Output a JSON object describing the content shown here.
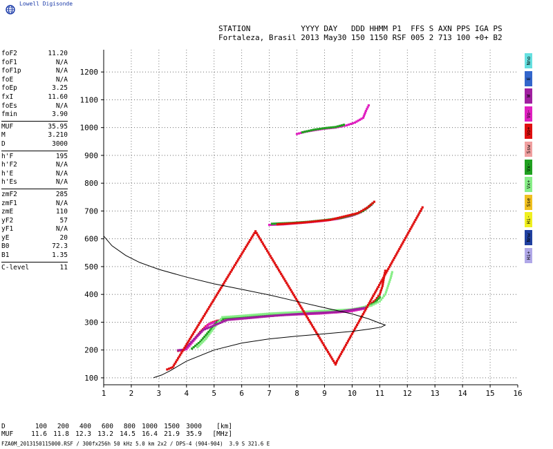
{
  "brand": {
    "name": "Lowell Digisonde"
  },
  "header": {
    "line1": "STATION           YYYY DAY   DDD HHMM P1  FFS S AXN PPS IGA PS",
    "line2": "Fortaleza, Brasil 2013 May30 150 1150 RSF 005 2 713 100 +0+ B2"
  },
  "parameters": [
    [
      {
        "k": "foF2",
        "v": "11.20"
      },
      {
        "k": "foF1",
        "v": "N/A"
      },
      {
        "k": "foF1p",
        "v": "N/A"
      },
      {
        "k": "foE",
        "v": "N/A"
      },
      {
        "k": "foEp",
        "v": "3.25"
      },
      {
        "k": "fxI",
        "v": "11.60"
      },
      {
        "k": "foEs",
        "v": "N/A"
      },
      {
        "k": "fmin",
        "v": "3.90"
      }
    ],
    [
      {
        "k": "MUF",
        "v": "35.95"
      },
      {
        "k": "M",
        "v": "3.210"
      },
      {
        "k": "D",
        "v": "3000"
      }
    ],
    [
      {
        "k": "h'F",
        "v": "195"
      },
      {
        "k": "h'F2",
        "v": "N/A"
      },
      {
        "k": "h'E",
        "v": "N/A"
      },
      {
        "k": "h'Es",
        "v": "N/A"
      }
    ],
    [
      {
        "k": "zmF2",
        "v": "285"
      },
      {
        "k": "zmF1",
        "v": "N/A"
      },
      {
        "k": "zmE",
        "v": "110"
      },
      {
        "k": "yF2",
        "v": "57"
      },
      {
        "k": "yF1",
        "v": "N/A"
      },
      {
        "k": "yE",
        "v": "20"
      },
      {
        "k": "B0",
        "v": "72.3"
      },
      {
        "k": "B1",
        "v": "1.35"
      }
    ],
    [
      {
        "k": "C-level",
        "v": "11"
      }
    ]
  ],
  "legend": [
    {
      "label": "Nno",
      "color": "#66e0e0"
    },
    {
      "label": "E",
      "color": "#3366cc"
    },
    {
      "label": "W",
      "color": "#a020a0"
    },
    {
      "label": "Vo-",
      "color": "#e020c0"
    },
    {
      "label": "Vo+",
      "color": "#e01010"
    },
    {
      "label": "Ssw",
      "color": "#f0a0a0"
    },
    {
      "label": "Vx-",
      "color": "#20a020"
    },
    {
      "label": "Vx+",
      "color": "#88ee88"
    },
    {
      "label": "Sse",
      "color": "#f0c020"
    },
    {
      "label": "Hi-",
      "color": "#f0f020"
    },
    {
      "label": "Nnw",
      "color": "#2040a0"
    },
    {
      "label": "Hi+",
      "color": "#b0a8e8"
    }
  ],
  "distance_table": {
    "row1": [
      "D",
      "100",
      "200",
      "400",
      "600",
      "800",
      "1000",
      "1500",
      "3000",
      "[km]"
    ],
    "row2": [
      "MUF",
      "11.6",
      "11.8",
      "12.3",
      "13.2",
      "14.5",
      "16.4",
      "21.9",
      "35.9",
      "[MHz]"
    ]
  },
  "footer": {
    "text": "FZA0M_2013150115000.RSF / 300fx256h 50 kHz 5.0 km 2x2 / DPS-4 (904-904)  3.9 S 321.6 E"
  },
  "chart_data": {
    "type": "scatter",
    "xlim": [
      1,
      16
    ],
    "ylim": [
      75,
      1280
    ],
    "x_ticks": [
      1,
      2,
      3,
      4,
      5,
      6,
      7,
      8,
      9,
      10,
      11,
      12,
      13,
      14,
      15,
      16
    ],
    "y_ticks": [
      100,
      200,
      300,
      400,
      500,
      600,
      700,
      800,
      900,
      1000,
      1100,
      1200
    ],
    "grid": true,
    "profile_line": [
      [
        1.0,
        610
      ],
      [
        1.3,
        575
      ],
      [
        1.8,
        540
      ],
      [
        2.3,
        515
      ],
      [
        3.0,
        490
      ],
      [
        4.0,
        462
      ],
      [
        5.0,
        438
      ],
      [
        6.0,
        418
      ],
      [
        7.0,
        398
      ],
      [
        8.0,
        375
      ],
      [
        9.0,
        352
      ],
      [
        10.0,
        330
      ],
      [
        10.6,
        312
      ],
      [
        11.05,
        295
      ],
      [
        11.2,
        290
      ],
      [
        11.05,
        282
      ],
      [
        10.6,
        275
      ],
      [
        10.0,
        267
      ],
      [
        9.0,
        258
      ],
      [
        8.0,
        250
      ],
      [
        7.0,
        240
      ],
      [
        6.0,
        225
      ],
      [
        5.0,
        200
      ],
      [
        4.0,
        160
      ],
      [
        3.4,
        125
      ],
      [
        3.1,
        110
      ],
      [
        2.8,
        100
      ]
    ],
    "traces": [
      {
        "name": "Vo+",
        "points": [
          [
            3.7,
            197
          ],
          [
            3.8,
            198
          ],
          [
            3.9,
            200
          ],
          [
            4.0,
            205
          ],
          [
            4.1,
            215
          ],
          [
            4.3,
            240
          ],
          [
            4.5,
            265
          ],
          [
            4.7,
            285
          ],
          [
            4.9,
            298
          ],
          [
            5.1,
            305
          ],
          [
            5.3,
            308
          ],
          [
            5.6,
            310
          ],
          [
            6.0,
            313
          ],
          [
            6.5,
            318
          ],
          [
            7.0,
            322
          ],
          [
            7.5,
            326
          ],
          [
            8.0,
            329
          ],
          [
            8.5,
            331
          ],
          [
            9.0,
            334
          ],
          [
            9.5,
            336
          ],
          [
            10.0,
            342
          ],
          [
            10.3,
            347
          ],
          [
            10.6,
            360
          ],
          [
            10.85,
            380
          ],
          [
            11.0,
            400
          ],
          [
            11.1,
            430
          ],
          [
            11.15,
            460
          ],
          [
            11.2,
            485
          ]
        ]
      },
      {
        "name": "Vo-",
        "points": [
          [
            3.8,
            199
          ],
          [
            4.0,
            203
          ],
          [
            4.4,
            250
          ],
          [
            4.8,
            292
          ],
          [
            5.2,
            306
          ],
          [
            5.8,
            311
          ],
          [
            6.5,
            317
          ],
          [
            7.2,
            324
          ],
          [
            8.0,
            328
          ],
          [
            8.8,
            331
          ],
          [
            9.5,
            336
          ],
          [
            10.0,
            340
          ],
          [
            10.4,
            348
          ],
          [
            10.7,
            362
          ]
        ]
      },
      {
        "name": "Vx-",
        "points": [
          [
            4.2,
            205
          ],
          [
            4.5,
            230
          ],
          [
            4.8,
            265
          ],
          [
            5.1,
            300
          ],
          [
            5.4,
            315
          ],
          [
            6.0,
            320
          ],
          [
            7.0,
            328
          ],
          [
            8.0,
            333
          ],
          [
            9.0,
            338
          ],
          [
            9.8,
            343
          ],
          [
            10.4,
            352
          ],
          [
            10.8,
            368
          ],
          [
            11.0,
            390
          ]
        ]
      },
      {
        "name": "Vx+",
        "points": [
          [
            4.4,
            210
          ],
          [
            4.7,
            240
          ],
          [
            5.0,
            280
          ],
          [
            5.3,
            318
          ],
          [
            6.0,
            323
          ],
          [
            7.0,
            331
          ],
          [
            8.0,
            336
          ],
          [
            9.0,
            341
          ],
          [
            10.0,
            346
          ],
          [
            10.7,
            360
          ],
          [
            11.0,
            375
          ],
          [
            11.2,
            400
          ],
          [
            11.3,
            430
          ],
          [
            11.4,
            460
          ],
          [
            11.45,
            480
          ]
        ]
      },
      {
        "name": "W",
        "points": [
          [
            3.7,
            199
          ],
          [
            3.9,
            201
          ],
          [
            4.6,
            272
          ],
          [
            5.5,
            309
          ],
          [
            6.5,
            318
          ],
          [
            7.5,
            326
          ],
          [
            8.5,
            332
          ],
          [
            9.5,
            337
          ],
          [
            10.5,
            352
          ]
        ]
      },
      {
        "name": "Vo- multihop 2",
        "points": [
          [
            7.0,
            650
          ],
          [
            7.5,
            652
          ],
          [
            8.0,
            656
          ],
          [
            8.5,
            660
          ],
          [
            9.0,
            665
          ],
          [
            9.5,
            672
          ],
          [
            10.0,
            683
          ],
          [
            10.3,
            695
          ],
          [
            10.5,
            708
          ],
          [
            10.7,
            722
          ]
        ]
      },
      {
        "name": "Vx- multihop 2",
        "points": [
          [
            7.1,
            654
          ],
          [
            7.8,
            657
          ],
          [
            8.4,
            661
          ],
          [
            9.0,
            667
          ],
          [
            9.6,
            675
          ],
          [
            10.1,
            688
          ],
          [
            10.4,
            700
          ],
          [
            10.6,
            715
          ],
          [
            10.75,
            728
          ]
        ]
      },
      {
        "name": "Vo+ multihop 2",
        "points": [
          [
            7.3,
            652
          ],
          [
            8.2,
            658
          ],
          [
            9.2,
            668
          ],
          [
            10.2,
            692
          ],
          [
            10.55,
            712
          ],
          [
            10.8,
            733
          ]
        ]
      },
      {
        "name": "Vo- multihop 3",
        "points": [
          [
            8.0,
            977
          ],
          [
            8.3,
            985
          ],
          [
            8.6,
            990
          ],
          [
            9.0,
            996
          ],
          [
            9.4,
            1000
          ],
          [
            9.8,
            1008
          ],
          [
            10.1,
            1018
          ],
          [
            10.4,
            1035
          ],
          [
            10.5,
            1060
          ],
          [
            10.6,
            1080
          ]
        ]
      },
      {
        "name": "Vx- multihop 3",
        "points": [
          [
            8.2,
            983
          ],
          [
            8.6,
            992
          ],
          [
            9.0,
            998
          ],
          [
            9.4,
            1002
          ],
          [
            9.7,
            1010
          ]
        ]
      },
      {
        "name": "Vo+ scattered",
        "points": [
          [
            3.3,
            130
          ],
          [
            3.5,
            138
          ],
          [
            6.5,
            627
          ],
          [
            9.4,
            148
          ],
          [
            9.45,
            160
          ],
          [
            12.55,
            713
          ]
        ]
      }
    ]
  }
}
